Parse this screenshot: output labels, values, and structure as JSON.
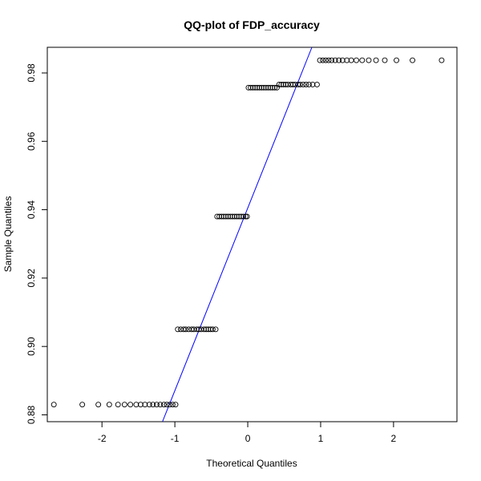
{
  "chart_data": {
    "type": "scatter",
    "title": "QQ-plot of FDP_accuracy",
    "xlabel": "Theoretical Quantiles",
    "ylabel": "Sample Quantiles",
    "xlim": [
      -2.75,
      2.87
    ],
    "ylim": [
      0.878,
      0.9875
    ],
    "xticks": [
      -2,
      -1,
      0,
      1,
      2
    ],
    "yticks": [
      0.88,
      0.9,
      0.92,
      0.94,
      0.96,
      0.98
    ],
    "ytick_labels": [
      "0.88",
      "0.90",
      "0.92",
      "0.94",
      "0.96",
      "0.98"
    ],
    "grid": false,
    "point_style": "open-circle",
    "groups": [
      {
        "y": 0.883,
        "x": [
          -2.66,
          -2.27,
          -2.05,
          -1.9,
          -1.78,
          -1.69,
          -1.61,
          -1.53,
          -1.47,
          -1.41,
          -1.35,
          -1.3,
          -1.25,
          -1.2,
          -1.15,
          -1.11,
          -1.07,
          -1.03,
          -0.99
        ]
      },
      {
        "y": 0.905,
        "x": [
          -0.96,
          -0.92,
          -0.88,
          -0.85,
          -0.81,
          -0.77,
          -0.74,
          -0.7,
          -0.67,
          -0.64,
          -0.6,
          -0.57,
          -0.54,
          -0.51,
          -0.48,
          -0.44
        ]
      },
      {
        "y": 0.938,
        "x": [
          -0.42,
          -0.39,
          -0.36,
          -0.33,
          -0.3,
          -0.27,
          -0.24,
          -0.21,
          -0.18,
          -0.15,
          -0.12,
          -0.09,
          -0.06,
          -0.03,
          -0.01
        ]
      },
      {
        "y": 0.9757,
        "x": [
          0.01,
          0.04,
          0.07,
          0.1,
          0.13,
          0.16,
          0.19,
          0.22,
          0.25,
          0.28,
          0.31,
          0.34,
          0.37,
          0.4
        ]
      },
      {
        "y": 0.9766,
        "x": [
          0.43,
          0.46,
          0.49,
          0.52,
          0.55,
          0.59,
          0.62,
          0.65,
          0.69,
          0.72,
          0.76,
          0.8,
          0.84,
          0.89,
          0.95
        ]
      },
      {
        "y": 0.9837,
        "x": [
          0.99,
          1.03,
          1.07,
          1.11,
          1.15,
          1.2,
          1.25,
          1.3,
          1.36,
          1.42,
          1.49,
          1.57,
          1.66,
          1.76,
          1.88,
          2.04,
          2.26,
          2.66
        ]
      }
    ],
    "reference_line": {
      "color": "#0000ff",
      "from": {
        "x": -1.17,
        "y": 0.878
      },
      "to": {
        "x": 0.88,
        "y": 0.9875
      }
    }
  }
}
